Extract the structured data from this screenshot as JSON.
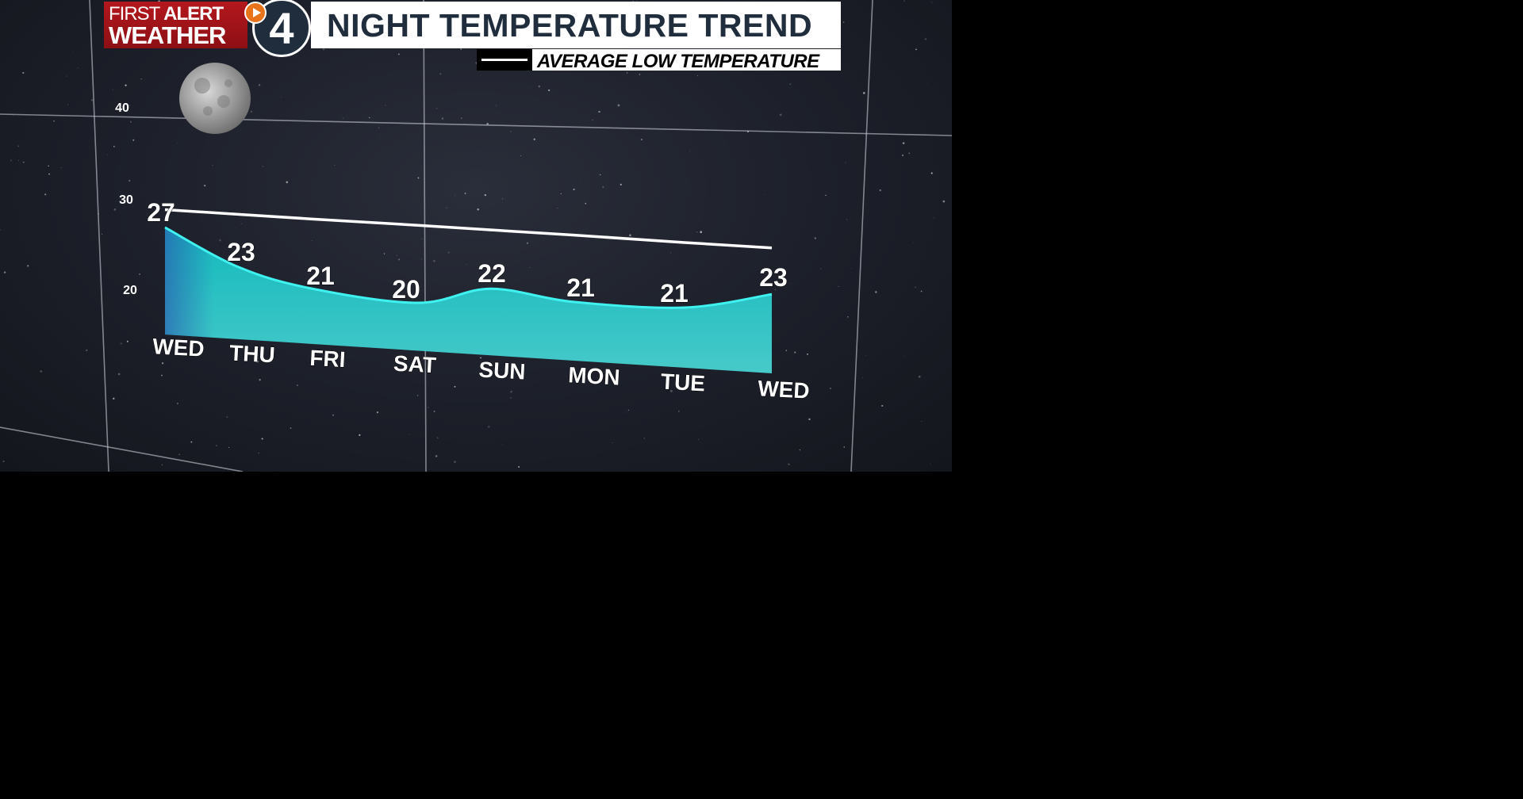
{
  "header": {
    "logo_line1_a": "FIRST",
    "logo_line1_b": "ALERT",
    "logo_line2": "WEATHER",
    "logo_channel": "4",
    "title": "NIGHT TEMPERATURE TREND",
    "legend_label": "AVERAGE LOW TEMPERATURE"
  },
  "colors": {
    "area": "#19c4c6",
    "area_line": "#3ff2f0",
    "avg_line": "#ffffff",
    "logo_red": "#b3181d",
    "title_text": "#1f2d3d"
  },
  "chart_data": {
    "type": "area",
    "title": "NIGHT TEMPERATURE TREND",
    "categories": [
      "WED",
      "THU",
      "FRI",
      "SAT",
      "SUN",
      "MON",
      "TUE",
      "WED"
    ],
    "series": [
      {
        "name": "",
        "values": [
          27,
          23,
          21,
          20,
          22,
          21,
          21,
          23
        ]
      },
      {
        "name": "AVERAGE LOW TEMPERATURE",
        "type": "line",
        "values": [
          29,
          28.9,
          28.8,
          28.7,
          28.6,
          28.5,
          28.3,
          28.2
        ]
      }
    ],
    "yticks": [
      20,
      30,
      40
    ],
    "ylim": [
      15,
      42
    ],
    "grid": true,
    "legend": "top-right"
  }
}
